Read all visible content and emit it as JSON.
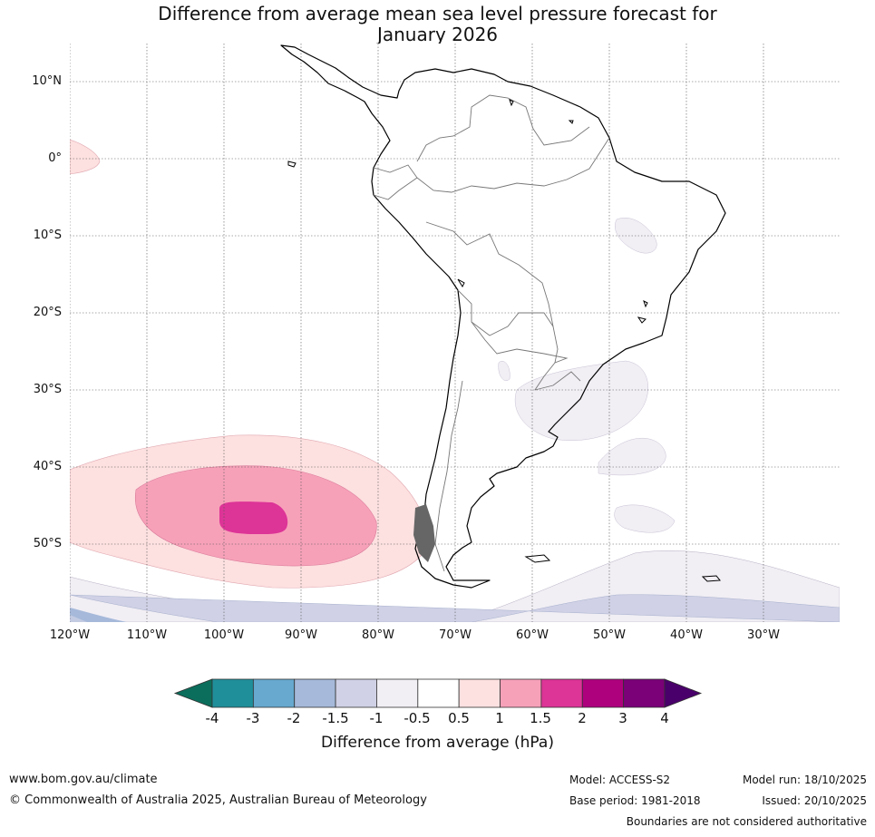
{
  "title": {
    "line1": "Difference from average mean sea level pressure forecast for",
    "line2": "January 2026"
  },
  "map": {
    "type": "map",
    "region": "South America and South-East Pacific",
    "lat_labels": [
      "10°N",
      "0°",
      "10°S",
      "20°S",
      "30°S",
      "40°S",
      "50°S"
    ],
    "lon_labels": [
      "120°W",
      "110°W",
      "100°W",
      "90°W",
      "80°W",
      "70°W",
      "60°W",
      "50°W",
      "40°W",
      "30°W"
    ],
    "anomaly_centre_hPa": "2 to 3 hPa above average near 46°S 95°W"
  },
  "colorbar": {
    "title": "Difference from average (hPa)",
    "ticks": [
      "-4",
      "-3",
      "-2",
      "-1.5",
      "-1",
      "-0.5",
      "0.5",
      "1",
      "1.5",
      "2",
      "3",
      "4"
    ],
    "colors": [
      "#1f8f9a",
      "#67a9cf",
      "#a6b9da",
      "#d0d1e6",
      "#f1eef4",
      "#ffffff",
      "#fde0e0",
      "#f7a1b9",
      "#dd3497",
      "#ae017e",
      "#7a0177"
    ],
    "low_extend_color": "#0b6e5c",
    "high_extend_color": "#49006a"
  },
  "footer": {
    "website": "www.bom.gov.au/climate",
    "copyright": "© Commonwealth of Australia 2025, Australian Bureau of Meteorology",
    "model": "Model: ACCESS-S2",
    "base_period": "Base period: 1981-2018",
    "model_run": "Model run: 18/10/2025",
    "issued": "Issued: 20/10/2025",
    "disclaimer": "Boundaries are not considered authoritative"
  }
}
